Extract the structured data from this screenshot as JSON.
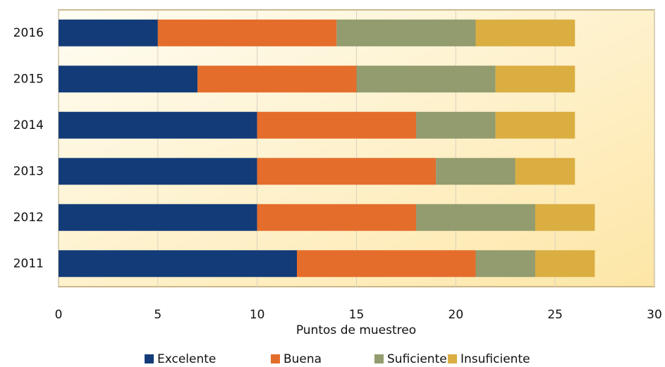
{
  "chart_data": {
    "type": "stacked-barh",
    "categories": [
      "2011",
      "2012",
      "2013",
      "2014",
      "2015",
      "2016"
    ],
    "series": [
      {
        "name": "Excelente",
        "color": "#133b78",
        "values": [
          12,
          10,
          10,
          10,
          7,
          5
        ]
      },
      {
        "name": "Buena",
        "color": "#e46d2c",
        "values": [
          9,
          8,
          9,
          8,
          8,
          9
        ]
      },
      {
        "name": "Suficiente",
        "color": "#929c6e",
        "values": [
          3,
          6,
          4,
          4,
          7,
          7
        ]
      },
      {
        "name": "Insuficiente",
        "color": "#dbae42",
        "values": [
          3,
          3,
          3,
          4,
          4,
          5
        ]
      }
    ],
    "xlabel": "Puntos de muestreo",
    "xlim": [
      0,
      30
    ],
    "xticks": [
      0,
      5,
      10,
      15,
      20,
      25,
      30
    ],
    "grid": true,
    "legend": "bottom"
  }
}
